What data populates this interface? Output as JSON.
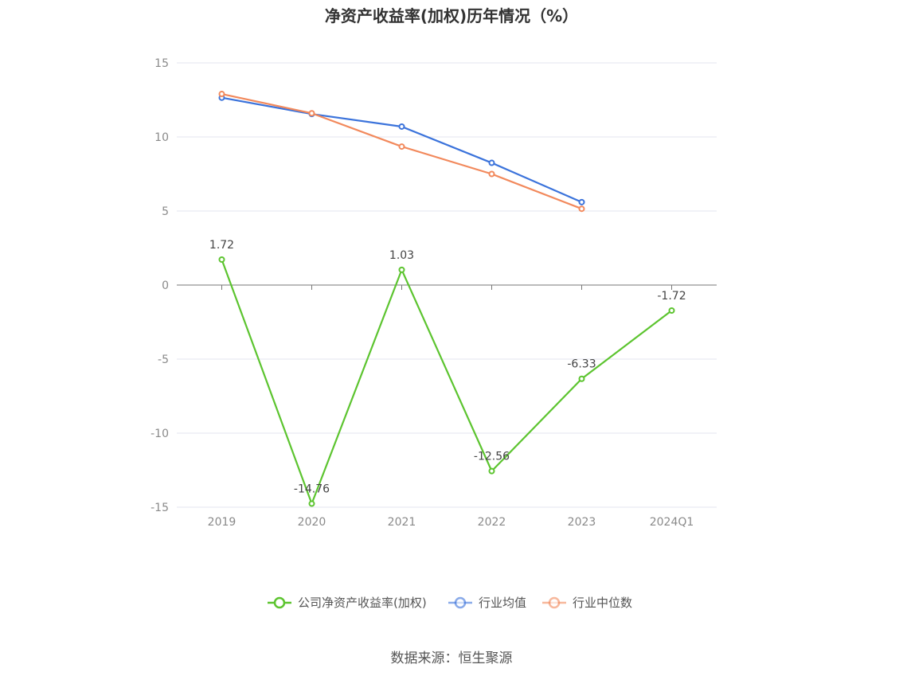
{
  "chart_data": {
    "type": "line",
    "title": "净资产收益率(加权)历年情况（%）",
    "categories": [
      "2019",
      "2020",
      "2021",
      "2022",
      "2023",
      "2024Q1"
    ],
    "series": [
      {
        "name": "公司净资产收益率(加权)",
        "color": "#5cc42f",
        "values": [
          1.72,
          -14.76,
          1.03,
          -12.56,
          -6.33,
          -1.72
        ],
        "labels": [
          "1.72",
          "-14.76",
          "1.03",
          "-12.56",
          "-6.33",
          "-1.72"
        ]
      },
      {
        "name": "行业均值",
        "color": "#3b73db",
        "values": [
          12.65,
          11.55,
          10.7,
          8.25,
          5.6,
          null
        ]
      },
      {
        "name": "行业中位数",
        "color": "#f2895c",
        "values": [
          12.9,
          11.6,
          9.35,
          7.5,
          5.15,
          null
        ]
      }
    ],
    "yticks": [
      "15",
      "10",
      "5",
      "0",
      "-5",
      "-10",
      "-15"
    ],
    "ylim": [
      -15,
      15
    ],
    "grid": true,
    "legend_position": "bottom"
  },
  "source_text": "数据来源：恒生聚源"
}
